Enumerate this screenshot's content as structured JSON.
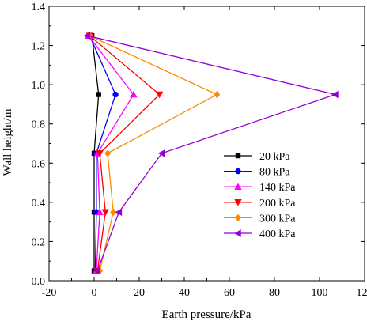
{
  "chart_data": {
    "type": "line",
    "title": "",
    "xlabel": "Earth pressure/kPa",
    "ylabel": "Wall height/m",
    "xlim": [
      -20,
      120
    ],
    "ylim": [
      0.0,
      1.4
    ],
    "x_ticks": [
      "-20",
      "0",
      "20",
      "40",
      "60",
      "80",
      "100",
      "120"
    ],
    "y_ticks": [
      "0.0",
      "0.2",
      "0.4",
      "0.6",
      "0.8",
      "1.0",
      "1.2",
      "1.4"
    ],
    "grid": false,
    "legend_position": "right-middle",
    "series": [
      {
        "name": "20 kPa",
        "color": "#000000",
        "marker": "square",
        "points": [
          [
            -1,
            1.25
          ],
          [
            2,
            0.95
          ],
          [
            0,
            0.65
          ],
          [
            0,
            0.35
          ],
          [
            0,
            0.05
          ]
        ]
      },
      {
        "name": "80 kPa",
        "color": "#0000ff",
        "marker": "circle",
        "points": [
          [
            -2,
            1.25
          ],
          [
            9.5,
            0.95
          ],
          [
            1,
            0.65
          ],
          [
            1,
            0.35
          ],
          [
            0.5,
            0.05
          ]
        ]
      },
      {
        "name": "140 kPa",
        "color": "#ff00ff",
        "marker": "triangle-up",
        "points": [
          [
            -2.5,
            1.25
          ],
          [
            17.5,
            0.95
          ],
          [
            1.5,
            0.65
          ],
          [
            2.5,
            0.35
          ],
          [
            1,
            0.05
          ]
        ]
      },
      {
        "name": "200 kPa",
        "color": "#ff0000",
        "marker": "triangle-down",
        "points": [
          [
            -2,
            1.25
          ],
          [
            29,
            0.95
          ],
          [
            2.5,
            0.65
          ],
          [
            5,
            0.35
          ],
          [
            1.5,
            0.05
          ]
        ]
      },
      {
        "name": "300 kPa",
        "color": "#ff8c00",
        "marker": "diamond",
        "points": [
          [
            -2,
            1.25
          ],
          [
            54.5,
            0.95
          ],
          [
            6,
            0.65
          ],
          [
            8.5,
            0.35
          ],
          [
            2.5,
            0.05
          ]
        ]
      },
      {
        "name": "400 kPa",
        "color": "#9400d3",
        "marker": "triangle-left",
        "points": [
          [
            -3,
            1.25
          ],
          [
            107,
            0.95
          ],
          [
            30,
            0.65
          ],
          [
            11,
            0.35
          ],
          [
            1.5,
            0.05
          ]
        ]
      }
    ]
  }
}
